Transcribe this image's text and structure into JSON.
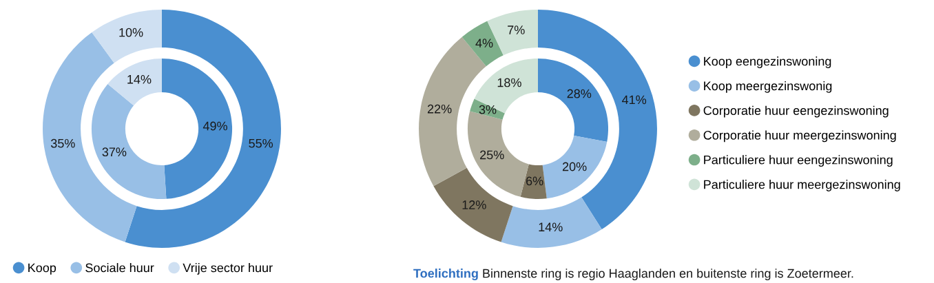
{
  "chart_data": [
    {
      "type": "donut",
      "categories": [
        "Koop",
        "Sociale huur",
        "Vrije sector huur"
      ],
      "colors": [
        "#4a8fd0",
        "#98bfe6",
        "#cfe0f2"
      ],
      "legend": "bottom",
      "series": [
        {
          "values": [
            55,
            35,
            10
          ],
          "value_labels": [
            "55%",
            "35%",
            "10%"
          ]
        },
        {
          "values": [
            49,
            37,
            14
          ],
          "value_labels": [
            "49%",
            "37%",
            "14%"
          ]
        }
      ]
    },
    {
      "type": "donut",
      "categories": [
        "Koop eengezinswoning",
        "Koop meergezinswonig",
        "Corporatie huur eengezinswoning",
        "Corporatie huur meergezinswoning",
        "Particuliere huur eengezinswoning",
        "Particuliere huur meergezinswoning"
      ],
      "colors": [
        "#4a8fd0",
        "#98bfe6",
        "#7f7660",
        "#b0ad9c",
        "#7daf8a",
        "#cfe3d7"
      ],
      "legend": "right",
      "series": [
        {
          "values": [
            41,
            14,
            12,
            22,
            4,
            7
          ],
          "value_labels": [
            "41%",
            "14%",
            "12%",
            "22%",
            "4%",
            "7%"
          ]
        },
        {
          "values": [
            28,
            20,
            6,
            25,
            3,
            18
          ],
          "value_labels": [
            "28%",
            "20%",
            "6%",
            "25%",
            "3%",
            "18%"
          ]
        }
      ],
      "annotations": [
        "Toelichting",
        "Binnenste ring is regio Haaglanden en buitenste ring is Zoetermeer."
      ]
    }
  ]
}
